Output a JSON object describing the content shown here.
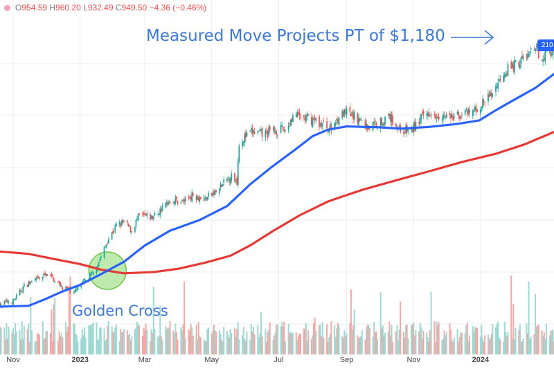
{
  "header": {
    "open_label": "O",
    "open": "954.59",
    "high_label": "H",
    "high": "960.20",
    "low_label": "L",
    "low": "932.49",
    "close_label": "C",
    "close": "949.50",
    "change": "−4.36 (−0.46%)"
  },
  "price_tag": "210",
  "annotations": {
    "measured_move": "Measured Move Projects PT of $1,180",
    "golden_cross": "Golden Cross"
  },
  "colors": {
    "up": "#26a69a",
    "down": "#ef5350",
    "ma50": "#2962ff",
    "ma200": "#e53935",
    "annotation": "#3c78d8",
    "circle": "#8bd96b"
  },
  "chart_data": {
    "type": "candlestick",
    "x_tick_labels": [
      "Nov",
      "2023",
      "Mar",
      "May",
      "Jul",
      "Sep",
      "Nov",
      "2024"
    ],
    "x_tick_dates": [
      "2022-11-01",
      "2023-01-01",
      "2023-03-01",
      "2023-05-01",
      "2023-07-01",
      "2023-09-01",
      "2023-11-01",
      "2024-01-01"
    ],
    "x_range": [
      "2022-10-20",
      "2024-03-08"
    ],
    "y_range": [
      395,
      1000
    ],
    "grid": true,
    "price_path": [
      [
        "2022-10-20",
        405
      ],
      [
        "2022-11-01",
        410
      ],
      [
        "2022-11-12",
        445
      ],
      [
        "2022-11-25",
        458
      ],
      [
        "2022-12-02",
        470
      ],
      [
        "2022-12-16",
        440
      ],
      [
        "2022-12-27",
        430
      ],
      [
        "2023-01-06",
        455
      ],
      [
        "2023-01-13",
        470
      ],
      [
        "2023-01-20",
        505
      ],
      [
        "2023-01-27",
        545
      ],
      [
        "2023-02-03",
        572
      ],
      [
        "2023-02-10",
        580
      ],
      [
        "2023-02-17",
        562
      ],
      [
        "2023-02-24",
        595
      ],
      [
        "2023-03-08",
        590
      ],
      [
        "2023-03-17",
        610
      ],
      [
        "2023-03-24",
        628
      ],
      [
        "2023-04-05",
        625
      ],
      [
        "2023-04-14",
        640
      ],
      [
        "2023-04-24",
        630
      ],
      [
        "2023-05-05",
        645
      ],
      [
        "2023-05-18",
        680
      ],
      [
        "2023-05-24",
        670
      ],
      [
        "2023-05-26",
        755
      ],
      [
        "2023-06-07",
        775
      ],
      [
        "2023-06-16",
        770
      ],
      [
        "2023-06-27",
        778
      ],
      [
        "2023-07-07",
        780
      ],
      [
        "2023-07-14",
        810
      ],
      [
        "2023-07-24",
        805
      ],
      [
        "2023-08-03",
        800
      ],
      [
        "2023-08-10",
        790
      ],
      [
        "2023-08-18",
        782
      ],
      [
        "2023-08-25",
        810
      ],
      [
        "2023-09-01",
        815
      ],
      [
        "2023-09-11",
        805
      ],
      [
        "2023-09-20",
        785
      ],
      [
        "2023-09-29",
        795
      ],
      [
        "2023-10-11",
        805
      ],
      [
        "2023-10-20",
        780
      ],
      [
        "2023-10-30",
        778
      ],
      [
        "2023-11-08",
        805
      ],
      [
        "2023-11-16",
        820
      ],
      [
        "2023-11-28",
        810
      ],
      [
        "2023-12-08",
        805
      ],
      [
        "2023-12-15",
        815
      ],
      [
        "2023-12-22",
        812
      ],
      [
        "2024-01-05",
        840
      ],
      [
        "2024-01-12",
        860
      ],
      [
        "2024-01-22",
        905
      ],
      [
        "2024-02-01",
        920
      ],
      [
        "2024-02-09",
        932
      ],
      [
        "2024-02-16",
        945
      ],
      [
        "2024-02-21",
        950
      ],
      [
        "2024-02-26",
        938
      ],
      [
        "2024-03-01",
        948
      ],
      [
        "2024-03-08",
        950
      ]
    ],
    "ma50": [
      [
        "2022-10-20",
        398
      ],
      [
        "2022-11-01",
        399
      ],
      [
        "2022-11-15",
        400
      ],
      [
        "2022-12-01",
        415
      ],
      [
        "2022-12-15",
        430
      ],
      [
        "2023-01-01",
        445
      ],
      [
        "2023-01-20",
        468
      ],
      [
        "2023-02-10",
        495
      ],
      [
        "2023-03-01",
        530
      ],
      [
        "2023-03-24",
        562
      ],
      [
        "2023-04-20",
        585
      ],
      [
        "2023-05-15",
        615
      ],
      [
        "2023-06-05",
        662
      ],
      [
        "2023-06-25",
        700
      ],
      [
        "2023-07-15",
        735
      ],
      [
        "2023-08-01",
        766
      ],
      [
        "2023-08-15",
        780
      ],
      [
        "2023-09-01",
        787
      ],
      [
        "2023-10-01",
        785
      ],
      [
        "2023-10-20",
        782
      ],
      [
        "2023-11-15",
        786
      ],
      [
        "2023-12-10",
        792
      ],
      [
        "2023-12-31",
        800
      ],
      [
        "2024-01-15",
        822
      ],
      [
        "2024-02-01",
        845
      ],
      [
        "2024-02-20",
        870
      ],
      [
        "2024-03-08",
        900
      ]
    ],
    "ma200": [
      [
        "2022-10-20",
        517
      ],
      [
        "2022-11-15",
        512
      ],
      [
        "2022-12-10",
        500
      ],
      [
        "2023-01-01",
        490
      ],
      [
        "2023-01-20",
        478
      ],
      [
        "2023-02-10",
        470
      ],
      [
        "2023-03-10",
        473
      ],
      [
        "2023-04-01",
        480
      ],
      [
        "2023-04-25",
        493
      ],
      [
        "2023-05-18",
        508
      ],
      [
        "2023-06-05",
        530
      ],
      [
        "2023-06-25",
        560
      ],
      [
        "2023-07-20",
        595
      ],
      [
        "2023-08-15",
        625
      ],
      [
        "2023-09-15",
        650
      ],
      [
        "2023-10-15",
        670
      ],
      [
        "2023-11-15",
        690
      ],
      [
        "2023-12-15",
        710
      ],
      [
        "2024-01-15",
        728
      ],
      [
        "2024-02-10",
        748
      ],
      [
        "2024-03-08",
        775
      ]
    ]
  }
}
